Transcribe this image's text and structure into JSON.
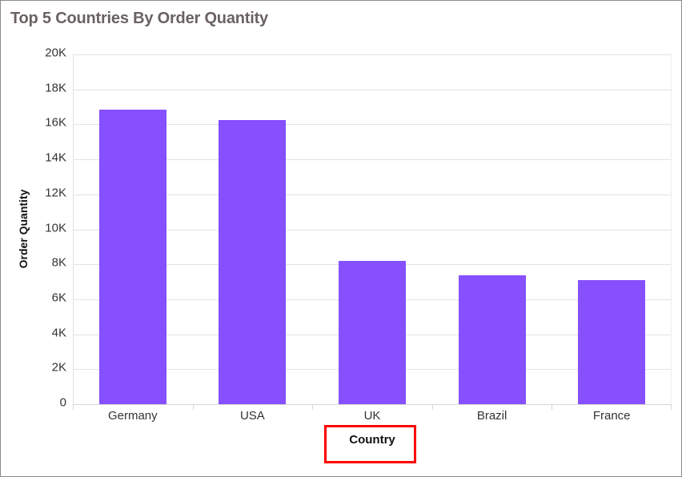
{
  "chart_data": {
    "type": "bar",
    "title": "Top 5 Countries By Order Quantity",
    "xlabel": "Country",
    "ylabel": "Order Quantity",
    "categories": [
      "Germany",
      "USA",
      "UK",
      "Brazil",
      "France"
    ],
    "values": [
      16850,
      16250,
      8190,
      7390,
      7090
    ],
    "ylim": [
      0,
      20000
    ],
    "yticks": [
      0,
      2000,
      4000,
      6000,
      8000,
      10000,
      12000,
      14000,
      16000,
      18000,
      20000
    ],
    "ytick_labels": [
      "0",
      "2K",
      "4K",
      "6K",
      "8K",
      "10K",
      "12K",
      "14K",
      "16K",
      "18K",
      "20K"
    ],
    "grid": true,
    "legend": null,
    "bar_color": "#8650ff"
  },
  "header": {
    "title": "Top 5 Countries By Order Quantity"
  },
  "axes": {
    "x_title": "Country",
    "y_title": "Order Quantity"
  },
  "annotation": {
    "highlight_color": "#ff0000",
    "highlight_target": "Country"
  }
}
